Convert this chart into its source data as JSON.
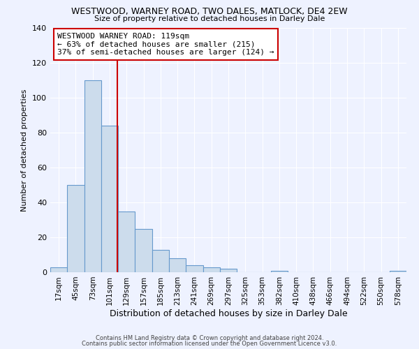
{
  "title": "WESTWOOD, WARNEY ROAD, TWO DALES, MATLOCK, DE4 2EW",
  "subtitle": "Size of property relative to detached houses in Darley Dale",
  "xlabel": "Distribution of detached houses by size in Darley Dale",
  "ylabel": "Number of detached properties",
  "bar_color": "#ccdcec",
  "bar_edge_color": "#6699cc",
  "background_color": "#eef2ff",
  "grid_color": "#ffffff",
  "bin_labels": [
    "17sqm",
    "45sqm",
    "73sqm",
    "101sqm",
    "129sqm",
    "157sqm",
    "185sqm",
    "213sqm",
    "241sqm",
    "269sqm",
    "297sqm",
    "325sqm",
    "353sqm",
    "382sqm",
    "410sqm",
    "438sqm",
    "466sqm",
    "494sqm",
    "522sqm",
    "550sqm",
    "578sqm"
  ],
  "bar_heights": [
    3,
    50,
    110,
    84,
    35,
    25,
    13,
    8,
    4,
    3,
    2,
    0,
    0,
    1,
    0,
    0,
    0,
    0,
    0,
    0,
    1
  ],
  "ylim": [
    0,
    140
  ],
  "yticks": [
    0,
    20,
    40,
    60,
    80,
    100,
    120,
    140
  ],
  "property_line_label": "WESTWOOD WARNEY ROAD: 119sqm",
  "annotation_line1": "← 63% of detached houses are smaller (215)",
  "annotation_line2": "37% of semi-detached houses are larger (124) →",
  "annotation_box_color": "#ffffff",
  "annotation_box_edge_color": "#cc0000",
  "property_line_color": "#cc0000",
  "property_line_bar_index": 3.964,
  "footer_line1": "Contains HM Land Registry data © Crown copyright and database right 2024.",
  "footer_line2": "Contains public sector information licensed under the Open Government Licence v3.0."
}
